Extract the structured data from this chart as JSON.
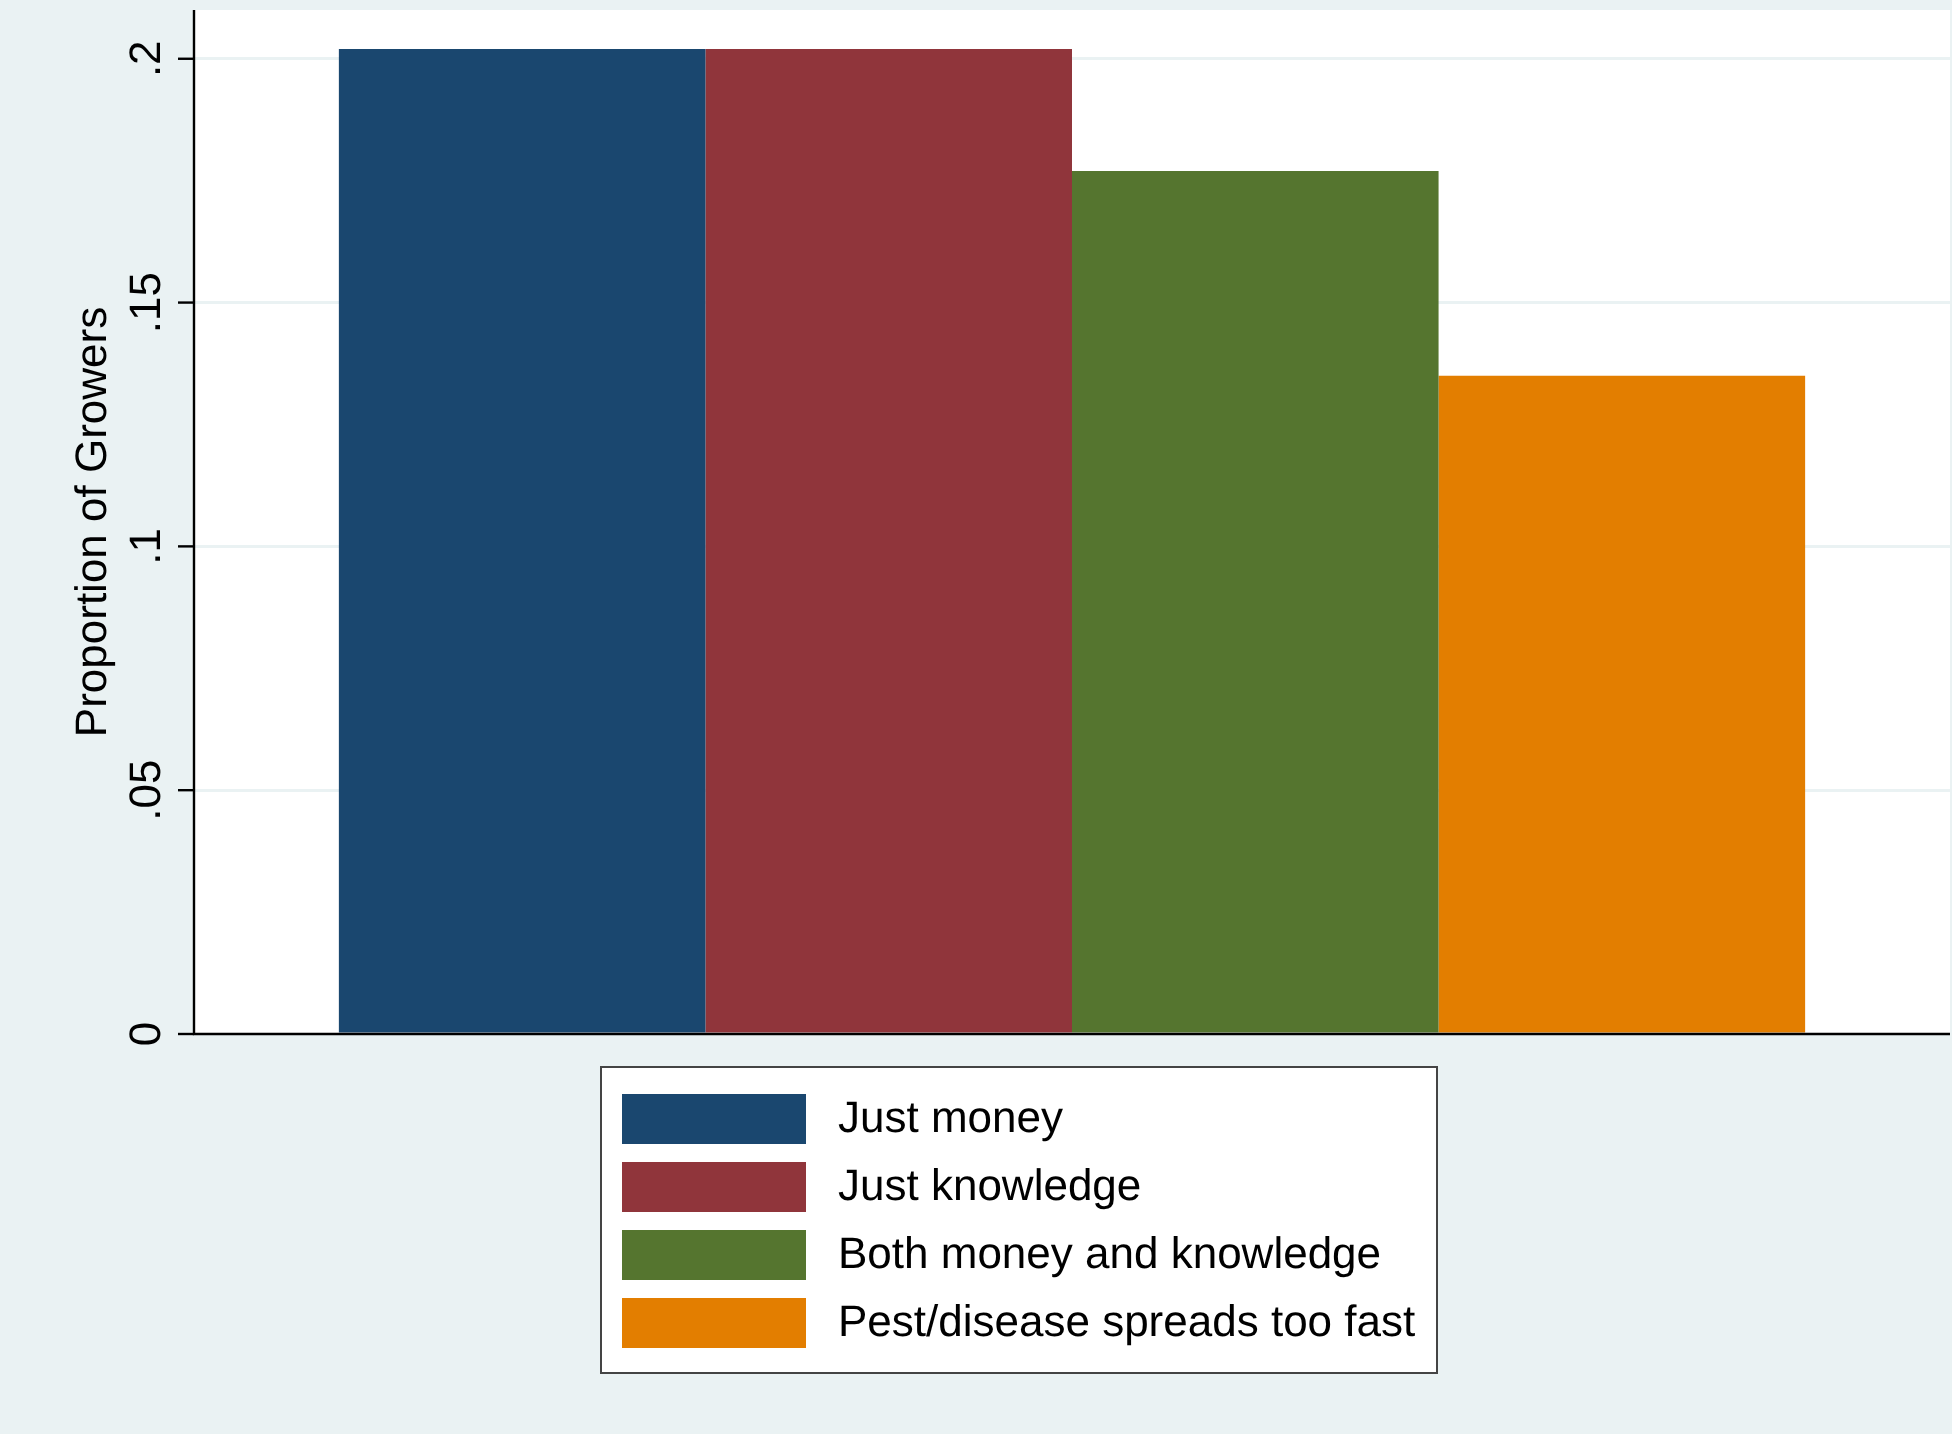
{
  "chart_data": {
    "type": "bar",
    "ylabel": "Proportion of Growers",
    "categories": [
      null
    ],
    "series": [
      {
        "name": "Just money",
        "color": "#1a476f",
        "values": [
          0.202
        ]
      },
      {
        "name": "Just knowledge",
        "color": "#90353b",
        "values": [
          0.202
        ]
      },
      {
        "name": "Both money and knowledge",
        "color": "#55752f",
        "values": [
          0.177
        ]
      },
      {
        "name": "Pest/disease spreads too fast",
        "color": "#e37e00",
        "values": [
          0.135
        ]
      }
    ],
    "ylim": [
      0,
      0.21
    ],
    "yticks": [
      {
        "value": 0,
        "label": "0"
      },
      {
        "value": 0.05,
        "label": ".05"
      },
      {
        "value": 0.1,
        "label": ".1"
      },
      {
        "value": 0.15,
        "label": ".15"
      },
      {
        "value": 0.2,
        "label": ".2"
      }
    ],
    "grid": "y",
    "legend": "bottom"
  }
}
